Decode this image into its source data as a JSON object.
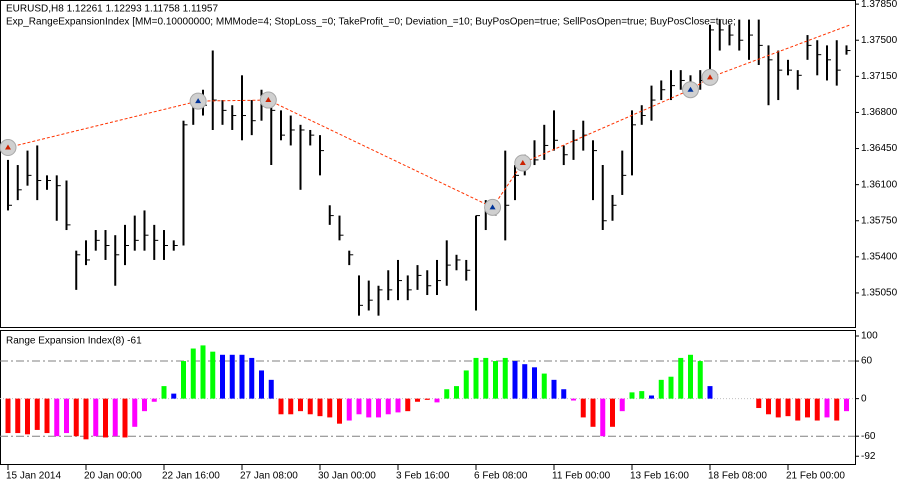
{
  "chart_data": [
    {
      "type": "ohlc",
      "title": "EURUSD,H8  1.12261 1.12293 1.11758 1.11957",
      "subtitle": "Exp_RangeExpansionIndex [MM=0.10000000; MMMode=4; StopLoss_=0; TakeProfit_=0; Deviation_=10; BuyPosOpen=true; SellPosOpen=true; BuyPosClose=true;",
      "categories": [
        "15 Jan 2014",
        null,
        null,
        null,
        null,
        null,
        null,
        null,
        "20 Jan 00:00",
        null,
        null,
        null,
        null,
        null,
        null,
        null,
        "22 Jan 16:00",
        null,
        null,
        null,
        null,
        null,
        null,
        null,
        "27 Jan 08:00",
        null,
        null,
        null,
        null,
        null,
        null,
        null,
        "30 Jan 00:00",
        null,
        null,
        null,
        null,
        null,
        null,
        null,
        "3 Feb 16:00",
        null,
        null,
        null,
        null,
        null,
        null,
        null,
        "6 Feb 08:00",
        null,
        null,
        null,
        null,
        null,
        null,
        null,
        "11 Feb 00:00",
        null,
        null,
        null,
        null,
        null,
        null,
        null,
        "13 Feb 16:00",
        null,
        null,
        null,
        null,
        null,
        null,
        null,
        "18 Feb 08:00",
        null,
        null,
        null,
        null,
        null,
        null,
        null,
        "21 Feb 00:00",
        null,
        null,
        null,
        null,
        null,
        null
      ],
      "high": [
        1.3634,
        1.3629,
        1.3643,
        1.3648,
        1.3619,
        1.3619,
        1.3614,
        1.3546,
        1.3556,
        1.3566,
        1.3566,
        1.3561,
        1.3571,
        1.358,
        1.3585,
        1.3571,
        1.3566,
        1.3556,
        1.3672,
        1.3697,
        1.3702,
        1.374,
        1.3692,
        1.3687,
        1.3716,
        1.3692,
        1.3702,
        1.3692,
        1.3682,
        1.3677,
        1.3668,
        1.3663,
        1.3658,
        1.359,
        1.358,
        1.3546,
        1.3522,
        1.3517,
        1.3512,
        1.3527,
        1.3537,
        1.3522,
        1.3532,
        1.3527,
        1.3537,
        1.3556,
        1.3542,
        1.3537,
        1.358,
        1.3595,
        1.3595,
        1.3643,
        1.3629,
        1.3639,
        1.3653,
        1.3668,
        1.3682,
        1.3648,
        1.3663,
        1.3672,
        1.3653,
        1.3629,
        1.36,
        1.3643,
        1.3682,
        1.3687,
        1.3706,
        1.3711,
        1.3721,
        1.3721,
        1.3716,
        1.3721,
        1.3765,
        1.377,
        1.3765,
        1.377,
        1.377,
        1.377,
        1.3745,
        1.374,
        1.3731,
        1.3721,
        1.3755,
        1.375,
        1.3745,
        1.375,
        1.3745
      ],
      "low": [
        1.3585,
        1.3595,
        1.3609,
        1.3595,
        1.3605,
        1.3575,
        1.3566,
        1.3508,
        1.3532,
        1.3546,
        1.3537,
        1.3512,
        1.3532,
        1.3546,
        1.3546,
        1.3537,
        1.3537,
        1.3546,
        1.3551,
        1.3668,
        1.3677,
        1.3663,
        1.3668,
        1.3663,
        1.3653,
        1.3658,
        1.3672,
        1.3629,
        1.3653,
        1.3648,
        1.3605,
        1.3648,
        1.3619,
        1.3571,
        1.3556,
        1.3532,
        1.3483,
        1.3488,
        1.3483,
        1.3498,
        1.3498,
        1.3498,
        1.3508,
        1.3503,
        1.3503,
        1.3512,
        1.3527,
        1.3517,
        1.3488,
        1.3566,
        1.358,
        1.3556,
        1.3595,
        1.3619,
        1.3629,
        1.3634,
        1.3643,
        1.3629,
        1.3634,
        1.3643,
        1.3595,
        1.3566,
        1.3575,
        1.36,
        1.3619,
        1.3668,
        1.3672,
        1.3692,
        1.3692,
        1.3702,
        1.3697,
        1.3702,
        1.3716,
        1.374,
        1.3745,
        1.374,
        1.3731,
        1.3726,
        1.3687,
        1.3692,
        1.3716,
        1.3702,
        1.3731,
        1.3716,
        1.3711,
        1.3706,
        1.3736
      ],
      "close": [
        1.359,
        1.3605,
        1.3619,
        1.3614,
        1.3614,
        1.3609,
        1.3571,
        1.3542,
        1.3537,
        1.3556,
        1.3551,
        1.3542,
        1.3551,
        1.3556,
        1.3561,
        1.3556,
        1.3551,
        1.3551,
        1.3668,
        1.3692,
        1.3687,
        1.3692,
        1.3682,
        1.3677,
        1.3677,
        1.3672,
        1.3692,
        1.3682,
        1.3658,
        1.3663,
        1.3663,
        1.3658,
        1.3643,
        1.358,
        1.3561,
        1.3542,
        1.3493,
        1.3498,
        1.3508,
        1.3508,
        1.3517,
        1.3508,
        1.3522,
        1.3512,
        1.3517,
        1.3532,
        1.3537,
        1.3527,
        1.358,
        1.3585,
        1.359,
        1.359,
        1.3619,
        1.3629,
        1.3634,
        1.3648,
        1.3653,
        1.3639,
        1.3653,
        1.3658,
        1.3643,
        1.3575,
        1.359,
        1.3619,
        1.3668,
        1.3677,
        1.3692,
        1.3702,
        1.3706,
        1.3711,
        1.3706,
        1.3711,
        1.376,
        1.376,
        1.3755,
        1.375,
        1.3755,
        1.3745,
        1.3731,
        1.3721,
        1.3721,
        1.3716,
        1.3745,
        1.3736,
        1.3731,
        1.3721,
        1.374
      ],
      "color": "#000000",
      "ylim": [
        1.3472,
        1.3789
      ],
      "yticks": [
        {
          "value": 1.3785,
          "label": "1.37850"
        },
        {
          "value": 1.375,
          "label": "1.37500"
        },
        {
          "value": 1.3715,
          "label": "1.37150"
        },
        {
          "value": 1.368,
          "label": "1.36800"
        },
        {
          "value": 1.3645,
          "label": "1.36450"
        },
        {
          "value": 1.361,
          "label": "1.36100"
        },
        {
          "value": 1.3575,
          "label": "1.35750"
        },
        {
          "value": 1.354,
          "label": "1.35400"
        },
        {
          "value": 1.3505,
          "label": "1.35050"
        }
      ],
      "trades": {
        "color": "#ff3300",
        "x": [
          0,
          19.5,
          26.7,
          49.7,
          52.8,
          70,
          72,
          86.4
        ],
        "values": [
          1.3646,
          1.3691,
          1.3692,
          1.3588,
          1.3631,
          1.3702,
          1.3714,
          1.3765
        ],
        "marker_colors": [
          "#cc2200",
          "#003399",
          "#cc2200",
          "#003399",
          "#cc2200",
          "#003399",
          "#cc2200",
          null
        ]
      }
    },
    {
      "type": "histogram",
      "title": "Range Expansion Index(8) -61",
      "values": [
        -55,
        -55,
        -57,
        -50,
        -55,
        -60,
        -55,
        -60,
        -65,
        -60,
        -62,
        -60,
        -62,
        -45,
        -20,
        -5,
        20,
        8,
        60,
        80,
        85,
        75,
        70,
        70,
        70,
        65,
        45,
        30,
        -25,
        -25,
        -20,
        -25,
        -28,
        -30,
        -40,
        -35,
        -25,
        -30,
        -30,
        -25,
        -22,
        -20,
        -5,
        -2,
        -6,
        15,
        20,
        45,
        65,
        65,
        60,
        65,
        60,
        55,
        50,
        40,
        30,
        15,
        -3,
        -30,
        -45,
        -60,
        -45,
        -20,
        10,
        12,
        5,
        30,
        35,
        65,
        70,
        60,
        20,
        0,
        0,
        0,
        0,
        -15,
        -25,
        -30,
        -28,
        -35,
        -30,
        -35,
        -30,
        -35,
        -20
      ],
      "colors": [
        "#ff0000",
        "#ff0000",
        "#ff0000",
        "#ff0000",
        "#ff0000",
        "#ff00ff",
        "#ff00ff",
        "#ff0000",
        "#ff0000",
        "#ff00ff",
        "#ff0000",
        "#ff00ff",
        "#ff0000",
        "#ff00ff",
        "#ff00ff",
        "#ff00ff",
        "#00ff00",
        "#0000ff",
        "#00ff00",
        "#00ff00",
        "#00ff00",
        "#00ff00",
        "#0000ff",
        "#0000ff",
        "#0000ff",
        "#0000ff",
        "#0000ff",
        "#0000ff",
        "#ff0000",
        "#ff0000",
        "#ff0000",
        "#ff0000",
        "#ff0000",
        "#ff0000",
        "#ff0000",
        "#ff00ff",
        "#ff00ff",
        "#ff00ff",
        "#ff00ff",
        "#ff00ff",
        "#ff00ff",
        "#ff0000",
        "#ff0000",
        "#ff0000",
        "#ff00ff",
        "#00ff00",
        "#00ff00",
        "#00ff00",
        "#00ff00",
        "#00ff00",
        "#00ff00",
        "#00ff00",
        "#0000ff",
        "#0000ff",
        "#0000ff",
        "#00ff00",
        "#0000ff",
        "#0000ff",
        "#ff00ff",
        "#ff0000",
        "#ff0000",
        "#ff00ff",
        "#ff0000",
        "#ff00ff",
        "#00ff00",
        "#00ff00",
        "#0000ff",
        "#00ff00",
        "#00ff00",
        "#00ff00",
        "#00ff00",
        "#00ff00",
        "#0000ff",
        "#0000ff",
        "#0000ff",
        "#0000ff",
        "#0000ff",
        "#ff0000",
        "#ff0000",
        "#ff0000",
        "#ff0000",
        "#ff0000",
        "#ff0000",
        "#ff0000",
        "#ff00ff",
        "#ff0000",
        "#ff00ff"
      ],
      "ylim": [
        -106,
        108
      ],
      "yticks": [
        100,
        60,
        0,
        -60,
        -92
      ],
      "levels": [
        60,
        -60
      ],
      "level_color": "#808080"
    }
  ]
}
